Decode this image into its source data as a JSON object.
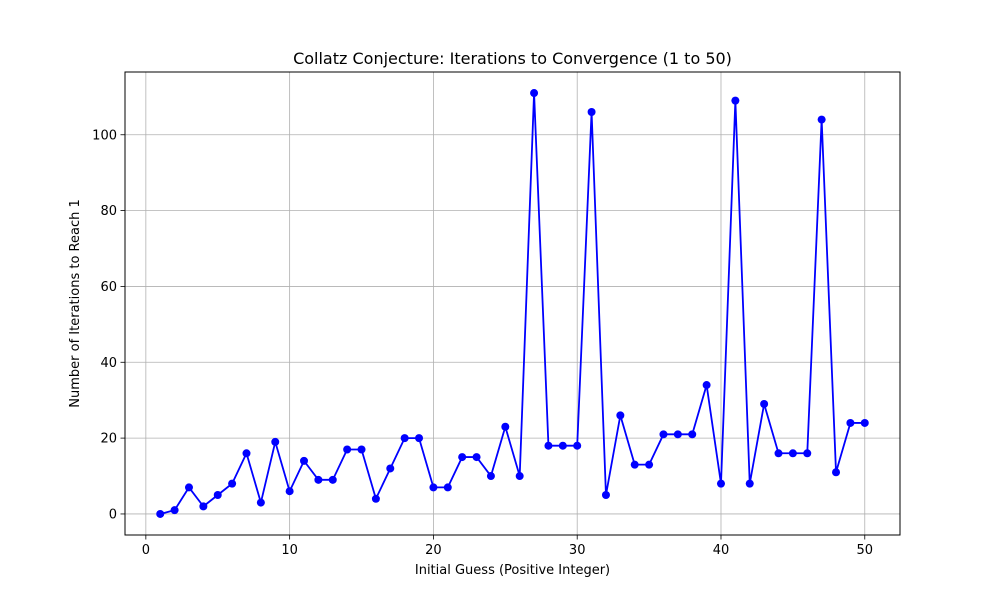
{
  "chart_data": {
    "type": "line",
    "title": "Collatz Conjecture: Iterations to Convergence (1 to 50)",
    "xlabel": "Initial Guess (Positive Integer)",
    "ylabel": "Number of Iterations to Reach 1",
    "xlim": [
      -1.45,
      52.45
    ],
    "ylim": [
      -5.55,
      116.55
    ],
    "x_ticks": [
      0,
      10,
      20,
      30,
      40,
      50
    ],
    "y_ticks": [
      0,
      20,
      40,
      60,
      80,
      100
    ],
    "grid": true,
    "marker": "circle",
    "line_color": "#0000ff",
    "marker_color": "#0000ff",
    "x": [
      1,
      2,
      3,
      4,
      5,
      6,
      7,
      8,
      9,
      10,
      11,
      12,
      13,
      14,
      15,
      16,
      17,
      18,
      19,
      20,
      21,
      22,
      23,
      24,
      25,
      26,
      27,
      28,
      29,
      30,
      31,
      32,
      33,
      34,
      35,
      36,
      37,
      38,
      39,
      40,
      41,
      42,
      43,
      44,
      45,
      46,
      47,
      48,
      49,
      50
    ],
    "y": [
      0,
      1,
      7,
      2,
      5,
      8,
      16,
      3,
      19,
      6,
      14,
      9,
      9,
      17,
      17,
      4,
      12,
      20,
      20,
      7,
      7,
      15,
      15,
      10,
      23,
      10,
      111,
      18,
      18,
      18,
      106,
      5,
      26,
      13,
      13,
      21,
      21,
      21,
      34,
      8,
      109,
      8,
      29,
      16,
      16,
      16,
      104,
      11,
      24,
      24
    ]
  }
}
